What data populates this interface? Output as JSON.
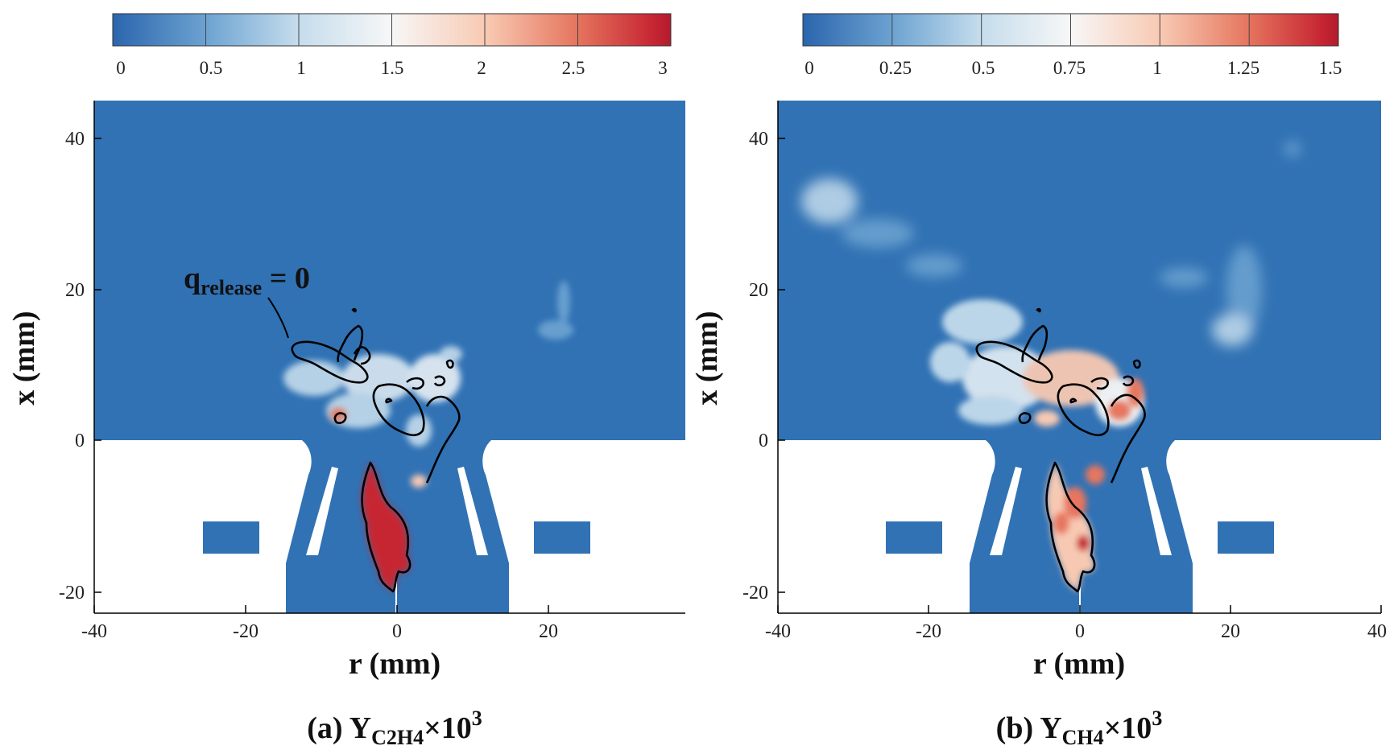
{
  "panels": [
    {
      "id": "a",
      "colorbar": {
        "ticks": [
          "0",
          "0.5",
          "1",
          "1.5",
          "2",
          "2.5",
          "3"
        ],
        "range": [
          0,
          3
        ]
      },
      "x_axis": {
        "title": "r (mm)",
        "ticks": [
          "-40",
          "-20",
          "0",
          "20"
        ],
        "range": [
          -40,
          40
        ]
      },
      "y_axis": {
        "title": "x (mm)",
        "ticks": [
          "40",
          "20",
          "0",
          "-20"
        ],
        "range": [
          -23,
          45
        ]
      },
      "caption": {
        "prefix": "(a) Y",
        "subscript": "C2H4",
        "times": "×10",
        "superscript": "3"
      },
      "annotation": {
        "text": "q",
        "subscript": "release",
        "tail": " = 0"
      }
    },
    {
      "id": "b",
      "colorbar": {
        "ticks": [
          "0",
          "0.25",
          "0.5",
          "0.75",
          "1",
          "1.25",
          "1.5"
        ],
        "range": [
          0,
          1.5
        ]
      },
      "x_axis": {
        "title": "r (mm)",
        "ticks": [
          "-40",
          "-20",
          "0",
          "20",
          "40"
        ],
        "range": [
          -40,
          40
        ]
      },
      "y_axis": {
        "title": "x (mm)",
        "ticks": [
          "40",
          "20",
          "0",
          "-20"
        ],
        "range": [
          -23,
          45
        ]
      },
      "caption": {
        "prefix": "(b) Y",
        "subscript": "CH4",
        "times": "×10",
        "superscript": "3"
      }
    }
  ],
  "colors": {
    "field_blue": "#3172b4",
    "scale": [
      "#2b65ad",
      "#6ea4d2",
      "#c4dcec",
      "#f7f7f7",
      "#f8c9b2",
      "#e6765f",
      "#c62532",
      "#b11c2d"
    ]
  }
}
